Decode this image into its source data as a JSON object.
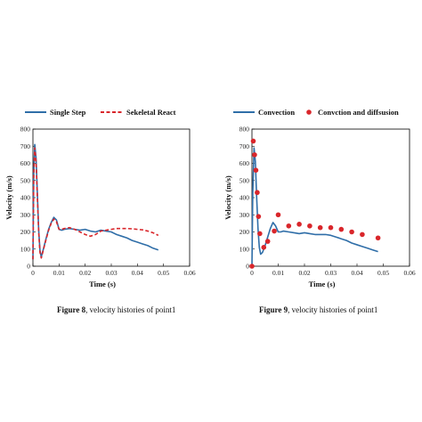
{
  "colors": {
    "blue": "#2f6ea8",
    "red": "#d9262b",
    "axis": "#000000"
  },
  "chart_data": [
    {
      "type": "line",
      "title": "",
      "xlabel": "Time (s)",
      "ylabel": "Velocity (m/s)",
      "xlim": [
        0,
        0.06
      ],
      "ylim": [
        0,
        800
      ],
      "xticks": [
        0,
        0.01,
        0.02,
        0.03,
        0.04,
        0.05,
        0.06
      ],
      "xtick_labels": [
        "0",
        "0.01",
        "0.02",
        "0.03",
        "0.04",
        "0.05",
        "0.06"
      ],
      "yticks": [
        0,
        100,
        200,
        300,
        400,
        500,
        600,
        700,
        800
      ],
      "ytick_labels": [
        "0",
        "100",
        "200",
        "300",
        "400",
        "500",
        "600",
        "700",
        "800"
      ],
      "legend_position": "top",
      "series": [
        {
          "name": "Single Step",
          "style": "solid",
          "color": "#2f6ea8",
          "x": [
            0,
            0.0003,
            0.0007,
            0.0012,
            0.0017,
            0.0022,
            0.0027,
            0.0032,
            0.004,
            0.005,
            0.006,
            0.007,
            0.008,
            0.009,
            0.01,
            0.011,
            0.012,
            0.014,
            0.016,
            0.018,
            0.02,
            0.022,
            0.024,
            0.026,
            0.028,
            0.03,
            0.032,
            0.034,
            0.036,
            0.038,
            0.04,
            0.042,
            0.044,
            0.046,
            0.048
          ],
          "y": [
            40,
            540,
            710,
            630,
            420,
            210,
            90,
            55,
            100,
            160,
            215,
            255,
            285,
            270,
            215,
            210,
            215,
            220,
            215,
            210,
            215,
            205,
            200,
            210,
            205,
            200,
            185,
            175,
            165,
            150,
            140,
            130,
            120,
            105,
            95
          ]
        },
        {
          "name": "Sekeletal React",
          "style": "dashed",
          "color": "#d9262b",
          "x": [
            0,
            0.0003,
            0.0007,
            0.0012,
            0.0017,
            0.0022,
            0.0027,
            0.0032,
            0.004,
            0.005,
            0.006,
            0.007,
            0.008,
            0.009,
            0.01,
            0.011,
            0.012,
            0.014,
            0.016,
            0.018,
            0.02,
            0.022,
            0.024,
            0.026,
            0.028,
            0.03,
            0.032,
            0.034,
            0.036,
            0.038,
            0.04,
            0.042,
            0.044,
            0.046,
            0.048
          ],
          "y": [
            40,
            520,
            690,
            610,
            400,
            200,
            80,
            48,
            95,
            155,
            210,
            250,
            275,
            260,
            215,
            215,
            220,
            225,
            215,
            200,
            185,
            175,
            185,
            205,
            210,
            215,
            220,
            220,
            220,
            218,
            215,
            212,
            205,
            195,
            180
          ]
        }
      ]
    },
    {
      "type": "line",
      "title": "",
      "xlabel": "Time (s)",
      "ylabel": "Velocity (m/s)",
      "xlim": [
        0,
        0.06
      ],
      "ylim": [
        0,
        800
      ],
      "xticks": [
        0,
        0.01,
        0.02,
        0.03,
        0.04,
        0.05,
        0.06
      ],
      "xtick_labels": [
        "0",
        "0.01",
        "0.02",
        "0.03",
        "0.04",
        "0.05",
        "0.06"
      ],
      "yticks": [
        0,
        100,
        200,
        300,
        400,
        500,
        600,
        700,
        800
      ],
      "ytick_labels": [
        "0",
        "100",
        "200",
        "300",
        "400",
        "500",
        "600",
        "700",
        "800"
      ],
      "legend_position": "top",
      "series": [
        {
          "name": "Convection",
          "style": "solid",
          "color": "#2f6ea8",
          "x": [
            0,
            0.0003,
            0.0008,
            0.0013,
            0.0018,
            0.0023,
            0.0028,
            0.0033,
            0.004,
            0.005,
            0.006,
            0.007,
            0.008,
            0.009,
            0.01,
            0.011,
            0.012,
            0.014,
            0.016,
            0.018,
            0.02,
            0.022,
            0.024,
            0.026,
            0.028,
            0.03,
            0.032,
            0.034,
            0.036,
            0.038,
            0.04,
            0.042,
            0.044,
            0.046,
            0.048
          ],
          "y": [
            0,
            420,
            690,
            610,
            400,
            220,
            110,
            70,
            80,
            120,
            170,
            220,
            255,
            235,
            200,
            200,
            205,
            200,
            195,
            190,
            195,
            190,
            185,
            185,
            185,
            180,
            170,
            160,
            150,
            135,
            125,
            115,
            105,
            95,
            85
          ]
        },
        {
          "name": "Convction and diffsusion",
          "style": "markers",
          "color": "#d9262b",
          "x": [
            0,
            0.0005,
            0.001,
            0.0015,
            0.002,
            0.0025,
            0.003,
            0.0045,
            0.006,
            0.0085,
            0.01,
            0.014,
            0.018,
            0.022,
            0.026,
            0.03,
            0.034,
            0.038,
            0.042,
            0.048
          ],
          "y": [
            0,
            730,
            650,
            560,
            430,
            290,
            190,
            110,
            145,
            205,
            300,
            235,
            245,
            235,
            225,
            225,
            215,
            200,
            185,
            165
          ]
        }
      ]
    }
  ],
  "captions": [
    {
      "label": "Figure 8",
      "text": ", velocity histories of point1"
    },
    {
      "label": "Figure 9",
      "text": ", velocity histories of point1"
    }
  ]
}
